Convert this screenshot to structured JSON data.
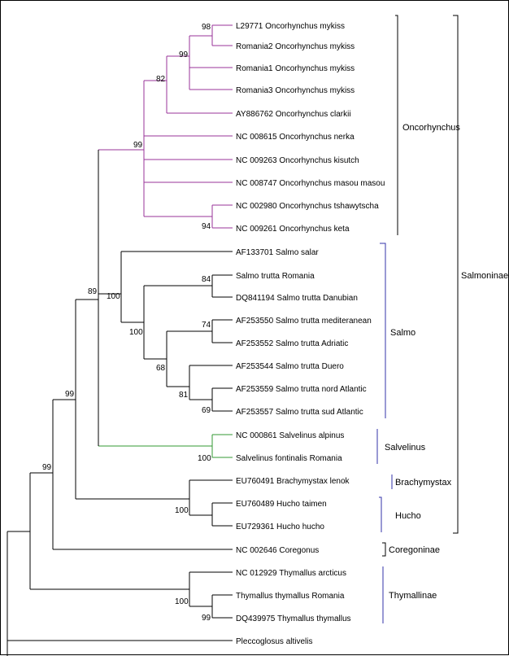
{
  "colors": {
    "default_branch": "#000000",
    "oncorhynchus_branch": "#993399",
    "salvelinus_branch": "#339933",
    "bracket": "#3333aa",
    "outer_bracket": "#000000"
  },
  "leaves": [
    "L29771 Oncorhynchus mykiss",
    "Romania2 Oncorhynchus mykiss",
    "Romania1  Oncorhynchus mykiss",
    "Romania3  Oncorhynchus mykiss",
    "AY886762 Oncorhynchus clarkii",
    "NC 008615 Oncorhynchus nerka",
    "NC 009263 Oncorhynchus kisutch",
    "NC 008747 Oncorhynchus masou masou",
    "NC 002980 Oncorhynchus tshawytscha",
    "NC 009261 Oncorhynchus keta",
    "AF133701 Salmo salar",
    "Salmo trutta  Romania",
    "DQ841194 Salmo trutta Danubian",
    "AF253550 Salmo trutta mediteranean",
    "AF253552 Salmo trutta Adriatic",
    "AF253544 Salmo trutta Duero",
    "AF253559 Salmo trutta nord Atlantic",
    "AF253557 Salmo trutta sud Atlantic",
    "NC 000861 Salvelinus alpinus",
    "Salvelinus fontinalis Romania",
    "EU760491 Brachymystax lenok",
    "EU760489 Hucho taimen",
    "EU729361 Hucho hucho",
    "NC 002646 Coregonus",
    "NC 012929 Thymallus arcticus",
    "Thymallus thymallus Romania",
    "DQ439975 Thymallus thymallus",
    "Pleccoglosus altivelis"
  ],
  "bootstrap": [
    "98",
    "99",
    "82",
    "99",
    "94",
    "84",
    "74",
    "81",
    "69",
    "68",
    "100",
    "100",
    "89",
    "100",
    "99",
    "100",
    "99",
    "100",
    "99"
  ],
  "groups": {
    "oncorhynchus": "Oncorhynchus",
    "salmo": "Salmo",
    "salvelinus": "Salvelinus",
    "brachymystax": "Brachymystax",
    "hucho": "Hucho",
    "coregoninae": "Coregoninae",
    "thymallinae": "Thymallinae",
    "salmoninae": "Salmoninae"
  }
}
